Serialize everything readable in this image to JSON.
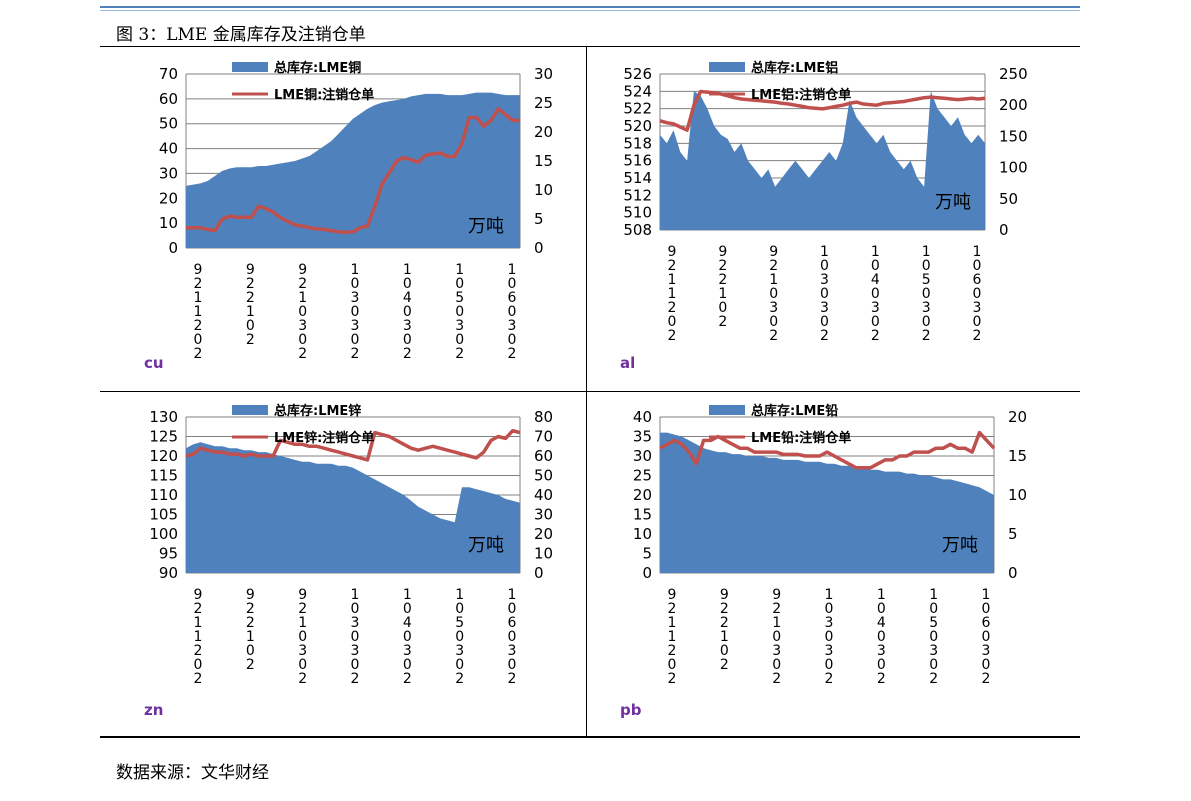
{
  "figure_title": "图 3：LME 金属库存及注销仓单",
  "source": "数据来源：文华财经",
  "chart_data": [
    {
      "type": "area",
      "metal": "cu",
      "series": [
        {
          "name": "总库存:LME铜",
          "axis": "left",
          "color": "#4f81bd",
          "values": [
            25,
            25.5,
            26,
            27,
            29,
            31,
            32,
            32.5,
            32.5,
            32.5,
            33,
            33,
            33.5,
            34,
            34.5,
            35,
            36,
            37,
            39,
            41,
            43,
            46,
            49,
            52,
            54,
            56,
            57.5,
            58.5,
            59,
            59.5,
            60,
            61,
            61.5,
            62,
            62,
            62,
            61.5,
            61.5,
            61.5,
            62,
            62.5,
            62.5,
            62.5,
            62,
            61.5,
            61.5,
            61.5
          ]
        },
        {
          "name": "LME铜:注销仓单",
          "axis": "right",
          "color": "#c0504d",
          "values": [
            3.5,
            3.5,
            3.5,
            3.2,
            3,
            5,
            5.5,
            5.3,
            5.3,
            5.3,
            7.2,
            6.8,
            6.2,
            5.2,
            4.6,
            4,
            3.8,
            3.5,
            3.3,
            3.2,
            3,
            2.8,
            2.7,
            2.8,
            3.5,
            3.8,
            7.2,
            11,
            13,
            15,
            15.6,
            15.2,
            14.8,
            16,
            16.2,
            16.4,
            15.8,
            15.8,
            18,
            22.5,
            22.5,
            21,
            22,
            24,
            23,
            22,
            22
          ]
        }
      ],
      "left_axis": {
        "min": 0,
        "max": 70,
        "ticks": [
          "0",
          "10",
          "20",
          "30",
          "40",
          "50",
          "60",
          "70"
        ]
      },
      "right_axis": {
        "min": 0,
        "max": 30,
        "ticks": [
          "0",
          "5",
          "10",
          "15",
          "20",
          "25",
          "30"
        ]
      },
      "x_labels": [
        "9 2 1 1 2 0 2",
        "9 2 2 1 0 2",
        "9 2 1 0 3 0 2",
        "1 0 3 0 3 0 2",
        "1 0 4 0 3 0 2",
        "1 0 5 0 3 0 2",
        "1 0 6 0 3 0 2"
      ],
      "unit": "万吨"
    },
    {
      "type": "area",
      "metal": "al",
      "series": [
        {
          "name": "总库存:LME铝",
          "axis": "left",
          "color": "#4f81bd",
          "values": [
            519,
            518,
            519.5,
            517,
            516,
            524,
            523.5,
            522,
            520,
            519,
            518.5,
            517,
            518,
            516,
            515,
            514,
            515,
            513,
            514,
            515,
            516,
            515,
            514,
            515,
            516,
            517,
            516,
            518,
            523,
            521,
            520,
            519,
            518,
            519,
            517,
            516,
            515,
            516,
            514,
            513,
            524,
            522,
            521,
            520,
            521,
            519,
            518,
            519,
            518
          ]
        },
        {
          "name": "LME铝:注销仓单",
          "axis": "right",
          "color": "#c0504d",
          "values": [
            175,
            172,
            170,
            165,
            160,
            200,
            222,
            221,
            220,
            218,
            215,
            212,
            210,
            209,
            208,
            207,
            206,
            205,
            203,
            202,
            200,
            198,
            196,
            195,
            194,
            196,
            198,
            200,
            203,
            205,
            202,
            201,
            200,
            203,
            204,
            205,
            206,
            208,
            210,
            212,
            213,
            212,
            211,
            210,
            209,
            210,
            211,
            210,
            211
          ]
        }
      ],
      "left_axis": {
        "min": 508,
        "max": 526,
        "ticks": [
          "508",
          "510",
          "512",
          "514",
          "516",
          "518",
          "520",
          "522",
          "524",
          "526"
        ]
      },
      "right_axis": {
        "min": 0,
        "max": 250,
        "ticks": [
          "0",
          "50",
          "100",
          "150",
          "200",
          "250"
        ]
      },
      "x_labels": [
        "9 2 1 1 2 0 2",
        "9 2 2 1 0 2",
        "9 2 1 0 3 0 2",
        "1 0 3 0 3 0 2",
        "1 0 4 0 3 0 2",
        "1 0 5 0 3 0 2",
        "1 0 6 0 3 0 2"
      ],
      "unit": "万吨"
    },
    {
      "type": "area",
      "metal": "zn",
      "series": [
        {
          "name": "总库存:LME锌",
          "axis": "left",
          "color": "#4f81bd",
          "values": [
            122,
            123,
            123.5,
            123,
            122.5,
            122.5,
            122,
            122,
            121.5,
            121.5,
            121,
            121,
            120.5,
            120,
            119.5,
            119,
            118.5,
            118.5,
            118,
            118,
            118,
            117.5,
            117.5,
            117,
            116,
            115,
            114,
            113,
            112,
            111,
            110,
            108.5,
            107,
            106,
            105,
            104,
            103.5,
            103,
            112,
            112,
            111.5,
            111,
            110.5,
            110,
            109,
            108.5,
            108
          ]
        },
        {
          "name": "LME锌:注销仓单",
          "axis": "right",
          "color": "#c0504d",
          "values": [
            60,
            61,
            64,
            63,
            62,
            62,
            61,
            61,
            60,
            61,
            60,
            60,
            60,
            68,
            67,
            66,
            66,
            65,
            65,
            64,
            63,
            62,
            61,
            60,
            59,
            58,
            72,
            71,
            70,
            68,
            66,
            64,
            63,
            64,
            65,
            64,
            63,
            62,
            61,
            60,
            59,
            62,
            68,
            70,
            69,
            73,
            72
          ]
        }
      ],
      "left_axis": {
        "min": 90,
        "max": 130,
        "ticks": [
          "90",
          "95",
          "100",
          "105",
          "110",
          "115",
          "120",
          "125",
          "130"
        ]
      },
      "right_axis": {
        "min": 0,
        "max": 80,
        "ticks": [
          "0",
          "10",
          "20",
          "30",
          "40",
          "50",
          "60",
          "70",
          "80"
        ]
      },
      "x_labels": [
        "9 2 1 1 2 0 2",
        "9 2 2 1 0 2",
        "9 2 1 0 3 0 2",
        "1 0 3 0 3 0 2",
        "1 0 4 0 3 0 2",
        "1 0 5 0 3 0 2",
        "1 0 6 0 3 0 2"
      ],
      "unit": "万吨"
    },
    {
      "type": "area",
      "metal": "pb",
      "series": [
        {
          "name": "总库存:LME铅",
          "axis": "left",
          "color": "#4f81bd",
          "values": [
            36,
            36,
            35.5,
            35,
            34,
            33,
            32,
            31.5,
            31,
            31,
            30.5,
            30.5,
            30,
            30,
            30,
            29.5,
            29.5,
            29,
            29,
            29,
            28.5,
            28.5,
            28.5,
            28,
            28,
            27.5,
            27.5,
            27,
            27,
            26.5,
            26.5,
            26,
            26,
            26,
            25.5,
            25.5,
            25,
            25,
            24.5,
            24,
            24,
            23.5,
            23,
            22.5,
            22,
            21,
            20
          ]
        },
        {
          "name": "LME铅:注销仓单",
          "axis": "right",
          "color": "#c0504d",
          "values": [
            16,
            16.5,
            17,
            16.5,
            15.5,
            14,
            17,
            17,
            17.5,
            17,
            16.5,
            16,
            16,
            15.5,
            15.5,
            15.5,
            15.5,
            15.2,
            15.2,
            15.2,
            15,
            15,
            15,
            15.5,
            15,
            14.5,
            14,
            13.5,
            13.5,
            13.5,
            14,
            14.5,
            14.5,
            15,
            15,
            15.5,
            15.5,
            15.5,
            16,
            16,
            16.5,
            16,
            16,
            15.5,
            18,
            17,
            16
          ]
        }
      ],
      "left_axis": {
        "min": 0,
        "max": 40,
        "ticks": [
          "0",
          "5",
          "10",
          "15",
          "20",
          "25",
          "30",
          "35",
          "40"
        ]
      },
      "right_axis": {
        "min": 0,
        "max": 20,
        "ticks": [
          "0",
          "5",
          "10",
          "15",
          "20"
        ]
      },
      "x_labels": [
        "9 2 1 1 2 0 2",
        "9 2 2 1 0 2",
        "9 2 1 0 3 0 2",
        "1 0 3 0 3 0 2",
        "1 0 4 0 3 0 2",
        "1 0 5 0 3 0 2",
        "1 0 6 0 3 0 2"
      ],
      "unit": "万吨"
    }
  ]
}
